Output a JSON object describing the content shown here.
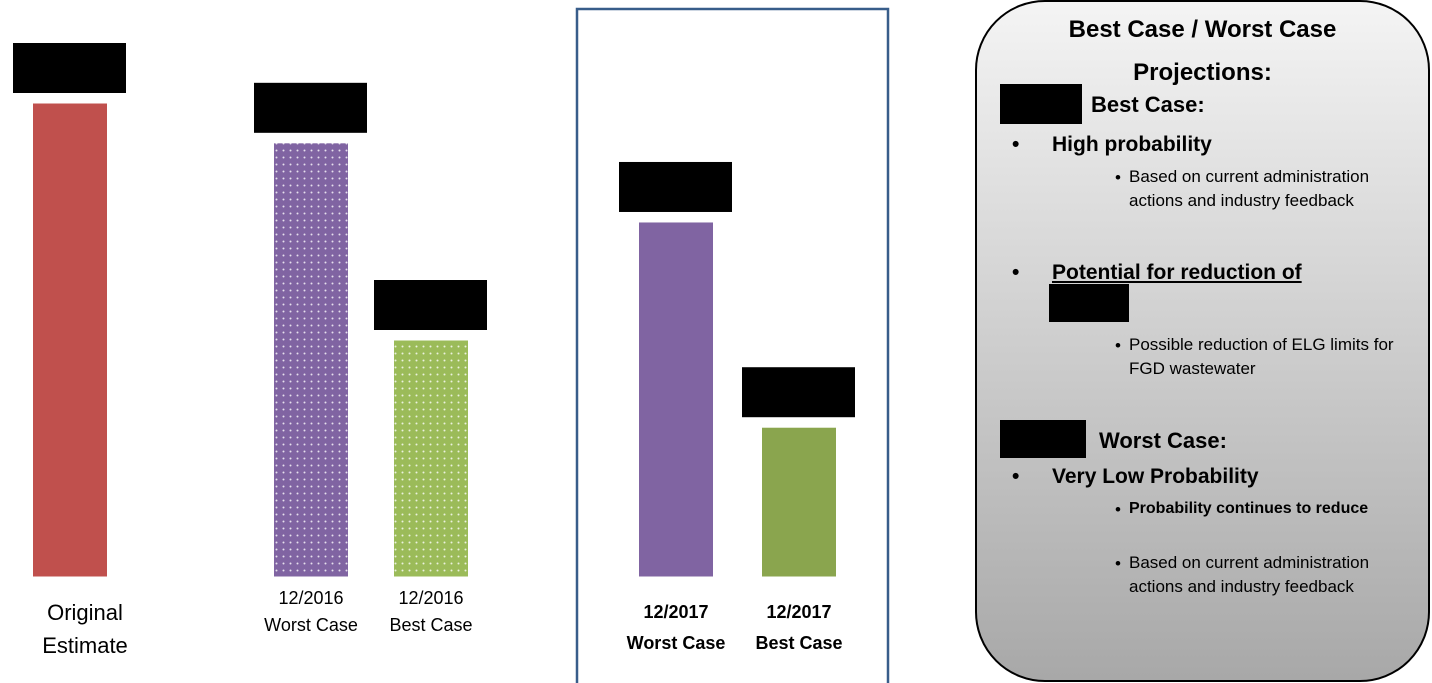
{
  "chart_data": {
    "type": "bar",
    "categories": [
      "Original\nEstimate",
      "12/2016\nWorst Case",
      "12/2016\nBest Case",
      "12/2017\nWorst Case",
      "12/2017\nBest Case"
    ],
    "values": [
      100,
      91.6,
      50,
      74.9,
      31.6
    ],
    "colors": [
      "#c0504d",
      "#8064a2",
      "#9bbb59",
      "#8064a2",
      "#8aa54e"
    ],
    "fill_pattern": [
      "solid",
      "dots",
      "dots",
      "solid",
      "solid"
    ]
  },
  "panel": {
    "title": "Best Case / Worst Case Projections:",
    "sections": [
      {
        "heading": "Best Case:",
        "items": [
          {
            "text": "High probability",
            "subitems": [
              "Based on current administration actions and industry feedback"
            ]
          },
          {
            "text": "Potential for reduction of",
            "subitems": [
              "Possible reduction of ELG limits for FGD wastewater"
            ]
          }
        ]
      },
      {
        "heading": "Worst Case:",
        "items": [
          {
            "text": "Very Low Probability",
            "subitems": [
              "Probability continues to reduce",
              "Based on current administration actions and industry feedback"
            ]
          }
        ]
      }
    ]
  }
}
